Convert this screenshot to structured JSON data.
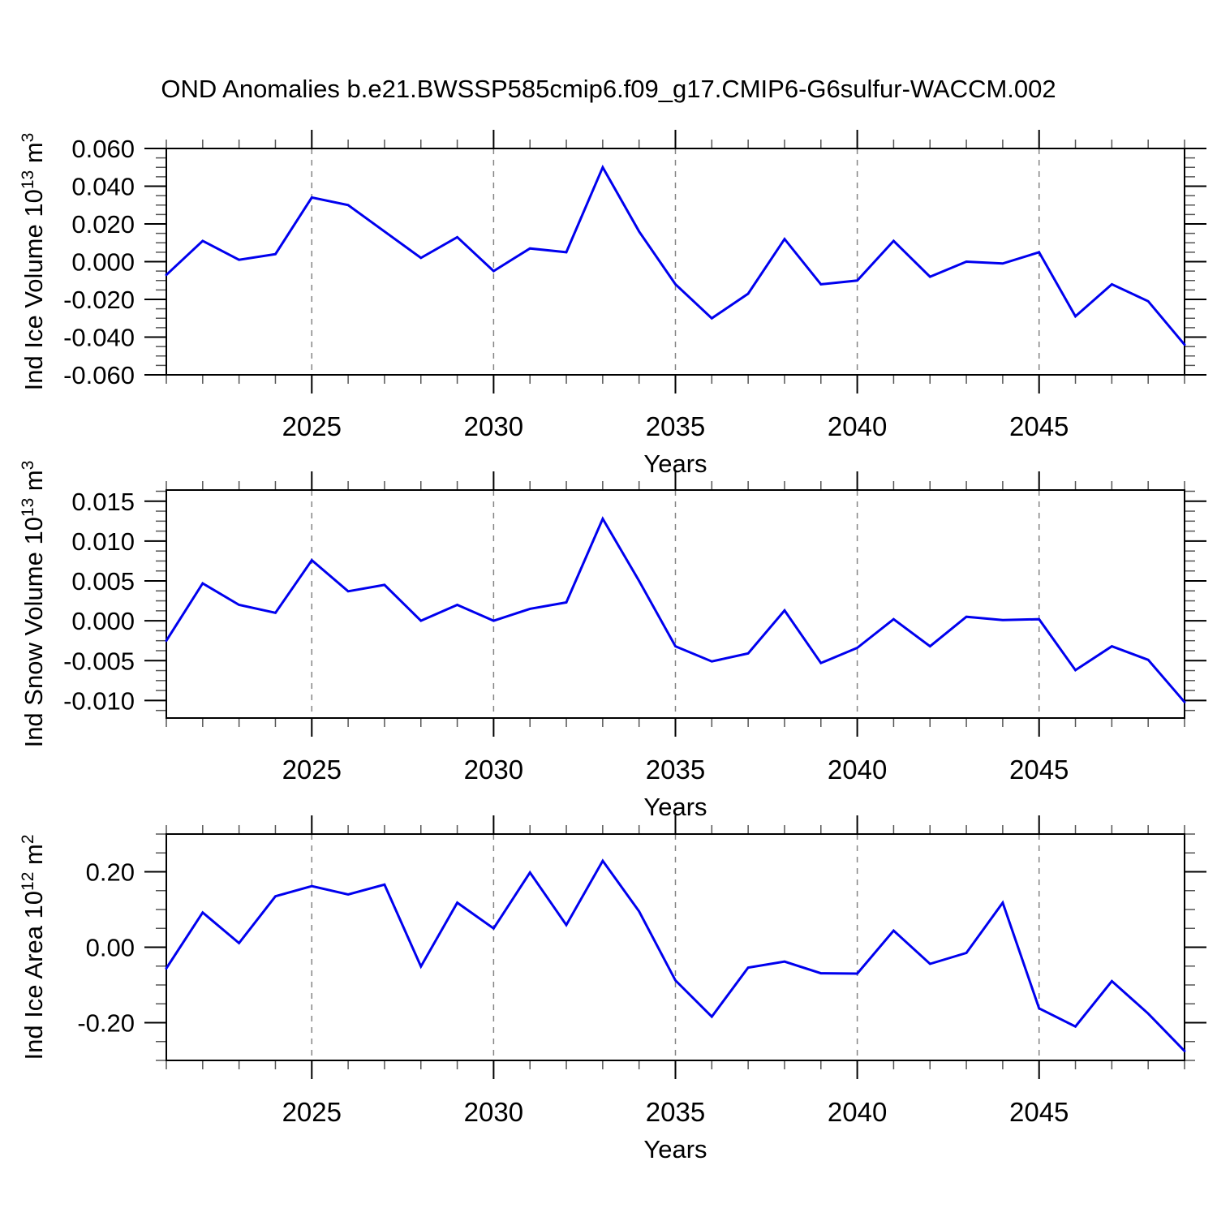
{
  "chart_data": {
    "type": "line",
    "title": "OND Anomalies b.e21.BWSSP585cmip6.f09_g17.CMIP6-G6sulfur-WACCM.002",
    "x_label": "Years",
    "x": [
      2021,
      2022,
      2023,
      2024,
      2025,
      2026,
      2027,
      2028,
      2029,
      2030,
      2031,
      2032,
      2033,
      2034,
      2035,
      2036,
      2037,
      2038,
      2039,
      2040,
      2041,
      2042,
      2043,
      2044,
      2045,
      2046,
      2047,
      2048,
      2049
    ],
    "x_major_ticks": [
      {
        "v": 2025,
        "label": "2025"
      },
      {
        "v": 2030,
        "label": "2030"
      },
      {
        "v": 2035,
        "label": "2035"
      },
      {
        "v": 2040,
        "label": "2040"
      },
      {
        "v": 2045,
        "label": "2045"
      }
    ],
    "grid": "vertical-dashed-at-major-ticks",
    "legend": "none",
    "line_color": "#0000EE",
    "grid_color": "#848484",
    "axis_color": "#000000",
    "minor_tick_color": "#555555",
    "panels": [
      {
        "name": "ice-volume",
        "ylabel": "Ind Ice Volume 10^13 m^3",
        "ylabel_parts": [
          {
            "t": "Ind Ice Volume 10"
          },
          {
            "t": "13",
            "sup": true
          },
          {
            "t": " m"
          },
          {
            "t": "3",
            "sup": true
          }
        ],
        "ylim": [
          -0.06,
          0.06
        ],
        "yticks": [
          {
            "v": 0.06,
            "label": "0.060"
          },
          {
            "v": 0.04,
            "label": "0.040"
          },
          {
            "v": 0.02,
            "label": "0.020"
          },
          {
            "v": 0.0,
            "label": "0.000"
          },
          {
            "v": -0.02,
            "label": "-0.020"
          },
          {
            "v": -0.04,
            "label": "-0.040"
          },
          {
            "v": -0.06,
            "label": "-0.060"
          }
        ],
        "y_major_step": 0.02,
        "y_minor_step": 0.005,
        "values": [
          -0.007,
          0.011,
          0.001,
          0.004,
          0.034,
          0.03,
          0.016,
          0.002,
          0.013,
          -0.005,
          0.007,
          0.005,
          0.05,
          0.016,
          -0.012,
          -0.03,
          -0.017,
          0.012,
          -0.012,
          -0.01,
          0.011,
          -0.008,
          0.0,
          -0.001,
          0.005,
          -0.029,
          -0.012,
          -0.021,
          -0.044
        ]
      },
      {
        "name": "snow-volume",
        "ylabel": "Ind Snow Volume 10^13 m^3",
        "ylabel_parts": [
          {
            "t": "Ind Snow Volume 10"
          },
          {
            "t": "13",
            "sup": true
          },
          {
            "t": " m"
          },
          {
            "t": "3",
            "sup": true
          }
        ],
        "ylim": [
          -0.0122,
          0.0164
        ],
        "yticks": [
          {
            "v": 0.015,
            "label": "0.015"
          },
          {
            "v": 0.01,
            "label": "0.010"
          },
          {
            "v": 0.005,
            "label": "0.005"
          },
          {
            "v": 0.0,
            "label": "0.000"
          },
          {
            "v": -0.005,
            "label": "-0.005"
          },
          {
            "v": -0.01,
            "label": "-0.010"
          }
        ],
        "y_major_step": 0.005,
        "y_minor_step": 0.00125,
        "values": [
          -0.0025,
          0.0047,
          0.002,
          0.001,
          0.0076,
          0.0037,
          0.0045,
          0.0,
          0.002,
          0.0,
          0.0015,
          0.0023,
          0.0128,
          0.005,
          -0.0032,
          -0.0051,
          -0.0041,
          0.0013,
          -0.0053,
          -0.0034,
          0.0002,
          -0.0032,
          0.0005,
          0.0001,
          0.0002,
          -0.0062,
          -0.0032,
          -0.0049,
          -0.0102
        ]
      },
      {
        "name": "ice-area",
        "ylabel": "Ind Ice Area 10^12 m^2",
        "ylabel_parts": [
          {
            "t": "Ind Ice Area 10"
          },
          {
            "t": "12",
            "sup": true
          },
          {
            "t": " m"
          },
          {
            "t": "2",
            "sup": true
          }
        ],
        "ylim": [
          -0.3,
          0.3
        ],
        "yticks": [
          {
            "v": 0.2,
            "label": "0.20"
          },
          {
            "v": 0.0,
            "label": "0.00"
          },
          {
            "v": -0.2,
            "label": "-0.20"
          }
        ],
        "y_major_step": 0.2,
        "y_minor_step": 0.05,
        "values": [
          -0.056,
          0.092,
          0.011,
          0.135,
          0.162,
          0.14,
          0.166,
          -0.051,
          0.118,
          0.05,
          0.198,
          0.059,
          0.229,
          0.095,
          -0.088,
          -0.184,
          -0.054,
          -0.038,
          -0.069,
          -0.07,
          0.044,
          -0.044,
          -0.015,
          0.118,
          -0.162,
          -0.21,
          -0.09,
          -0.176,
          -0.275
        ]
      }
    ]
  }
}
